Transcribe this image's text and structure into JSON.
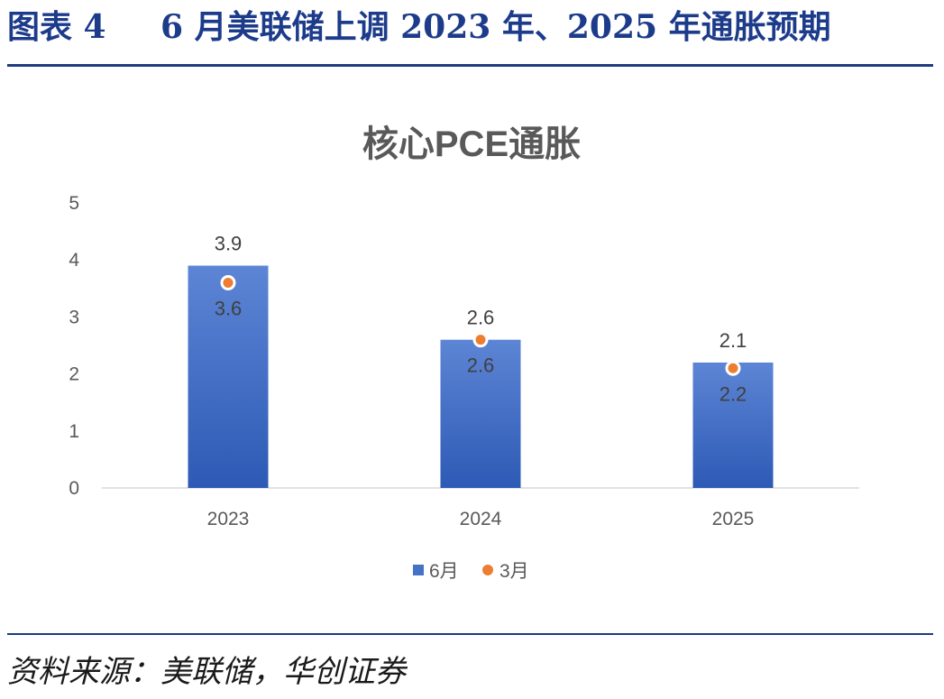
{
  "header": {
    "figure_label": "图表 4",
    "title": "6 月美联储上调 2023 年、2025 年通胀预期",
    "color": "#1c3b8a"
  },
  "chart_data": {
    "type": "bar",
    "title": "核心PCE通胀",
    "xlabel": "",
    "ylabel": "",
    "categories": [
      "2023",
      "2024",
      "2025"
    ],
    "series": [
      {
        "name": "6月",
        "type": "bar",
        "values": [
          3.9,
          2.6,
          2.2
        ],
        "color": "#4472c4"
      },
      {
        "name": "3月",
        "type": "scatter",
        "values": [
          3.6,
          2.6,
          2.1
        ],
        "color": "#ed7d31"
      }
    ],
    "ylim": [
      0,
      5
    ],
    "yticks": [
      0,
      1,
      2,
      3,
      4,
      5
    ],
    "grid": false,
    "legend": "bottom-center"
  },
  "footer": {
    "source": "资料来源：美联储，华创证券"
  }
}
